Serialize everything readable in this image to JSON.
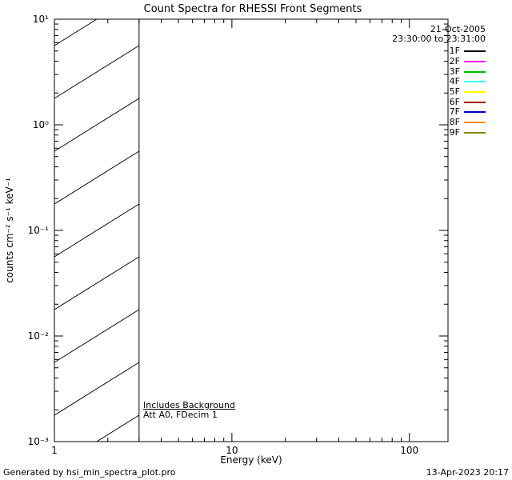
{
  "chart_data": {
    "type": "line",
    "title": "Count Spectra for RHESSI Front Segments",
    "xlabel": "Energy (keV)",
    "ylabel": "counts cm⁻² s⁻¹ keV⁻¹",
    "xscale": "log",
    "yscale": "log",
    "xlim": [
      1,
      165
    ],
    "ylim": [
      0.001,
      10
    ],
    "x_tick_labels": [
      "1",
      "10",
      "100"
    ],
    "y_tick_labels": [
      "10⁻³",
      "10⁻²",
      "10⁻¹",
      "10⁰",
      "10¹"
    ],
    "grid": false,
    "frame_color": "#000000",
    "hatched_region": {
      "x0": 1,
      "x1": 3
    },
    "series": [],
    "legend": {
      "position": "top-right",
      "date": "21-Oct-2005",
      "time_range": "23:30:00 to 23:31:00",
      "entries": [
        {
          "label": "1F",
          "color": "#000000"
        },
        {
          "label": "2F",
          "color": "#ff00ff"
        },
        {
          "label": "3F",
          "color": "#00bb00"
        },
        {
          "label": "4F",
          "color": "#33ffff"
        },
        {
          "label": "5F",
          "color": "#ffff00"
        },
        {
          "label": "6F",
          "color": "#aa0000"
        },
        {
          "label": "7F",
          "color": "#0000bb"
        },
        {
          "label": "8F",
          "color": "#ff8800"
        },
        {
          "label": "9F",
          "color": "#888800"
        }
      ]
    },
    "annotations": {
      "line1": "Includes Background",
      "line2": "Att A0, FDecim 1"
    }
  },
  "footer": {
    "generated_by": "Generated by hsi_min_spectra_plot.pro",
    "timestamp": "13-Apr-2023 20:17"
  }
}
